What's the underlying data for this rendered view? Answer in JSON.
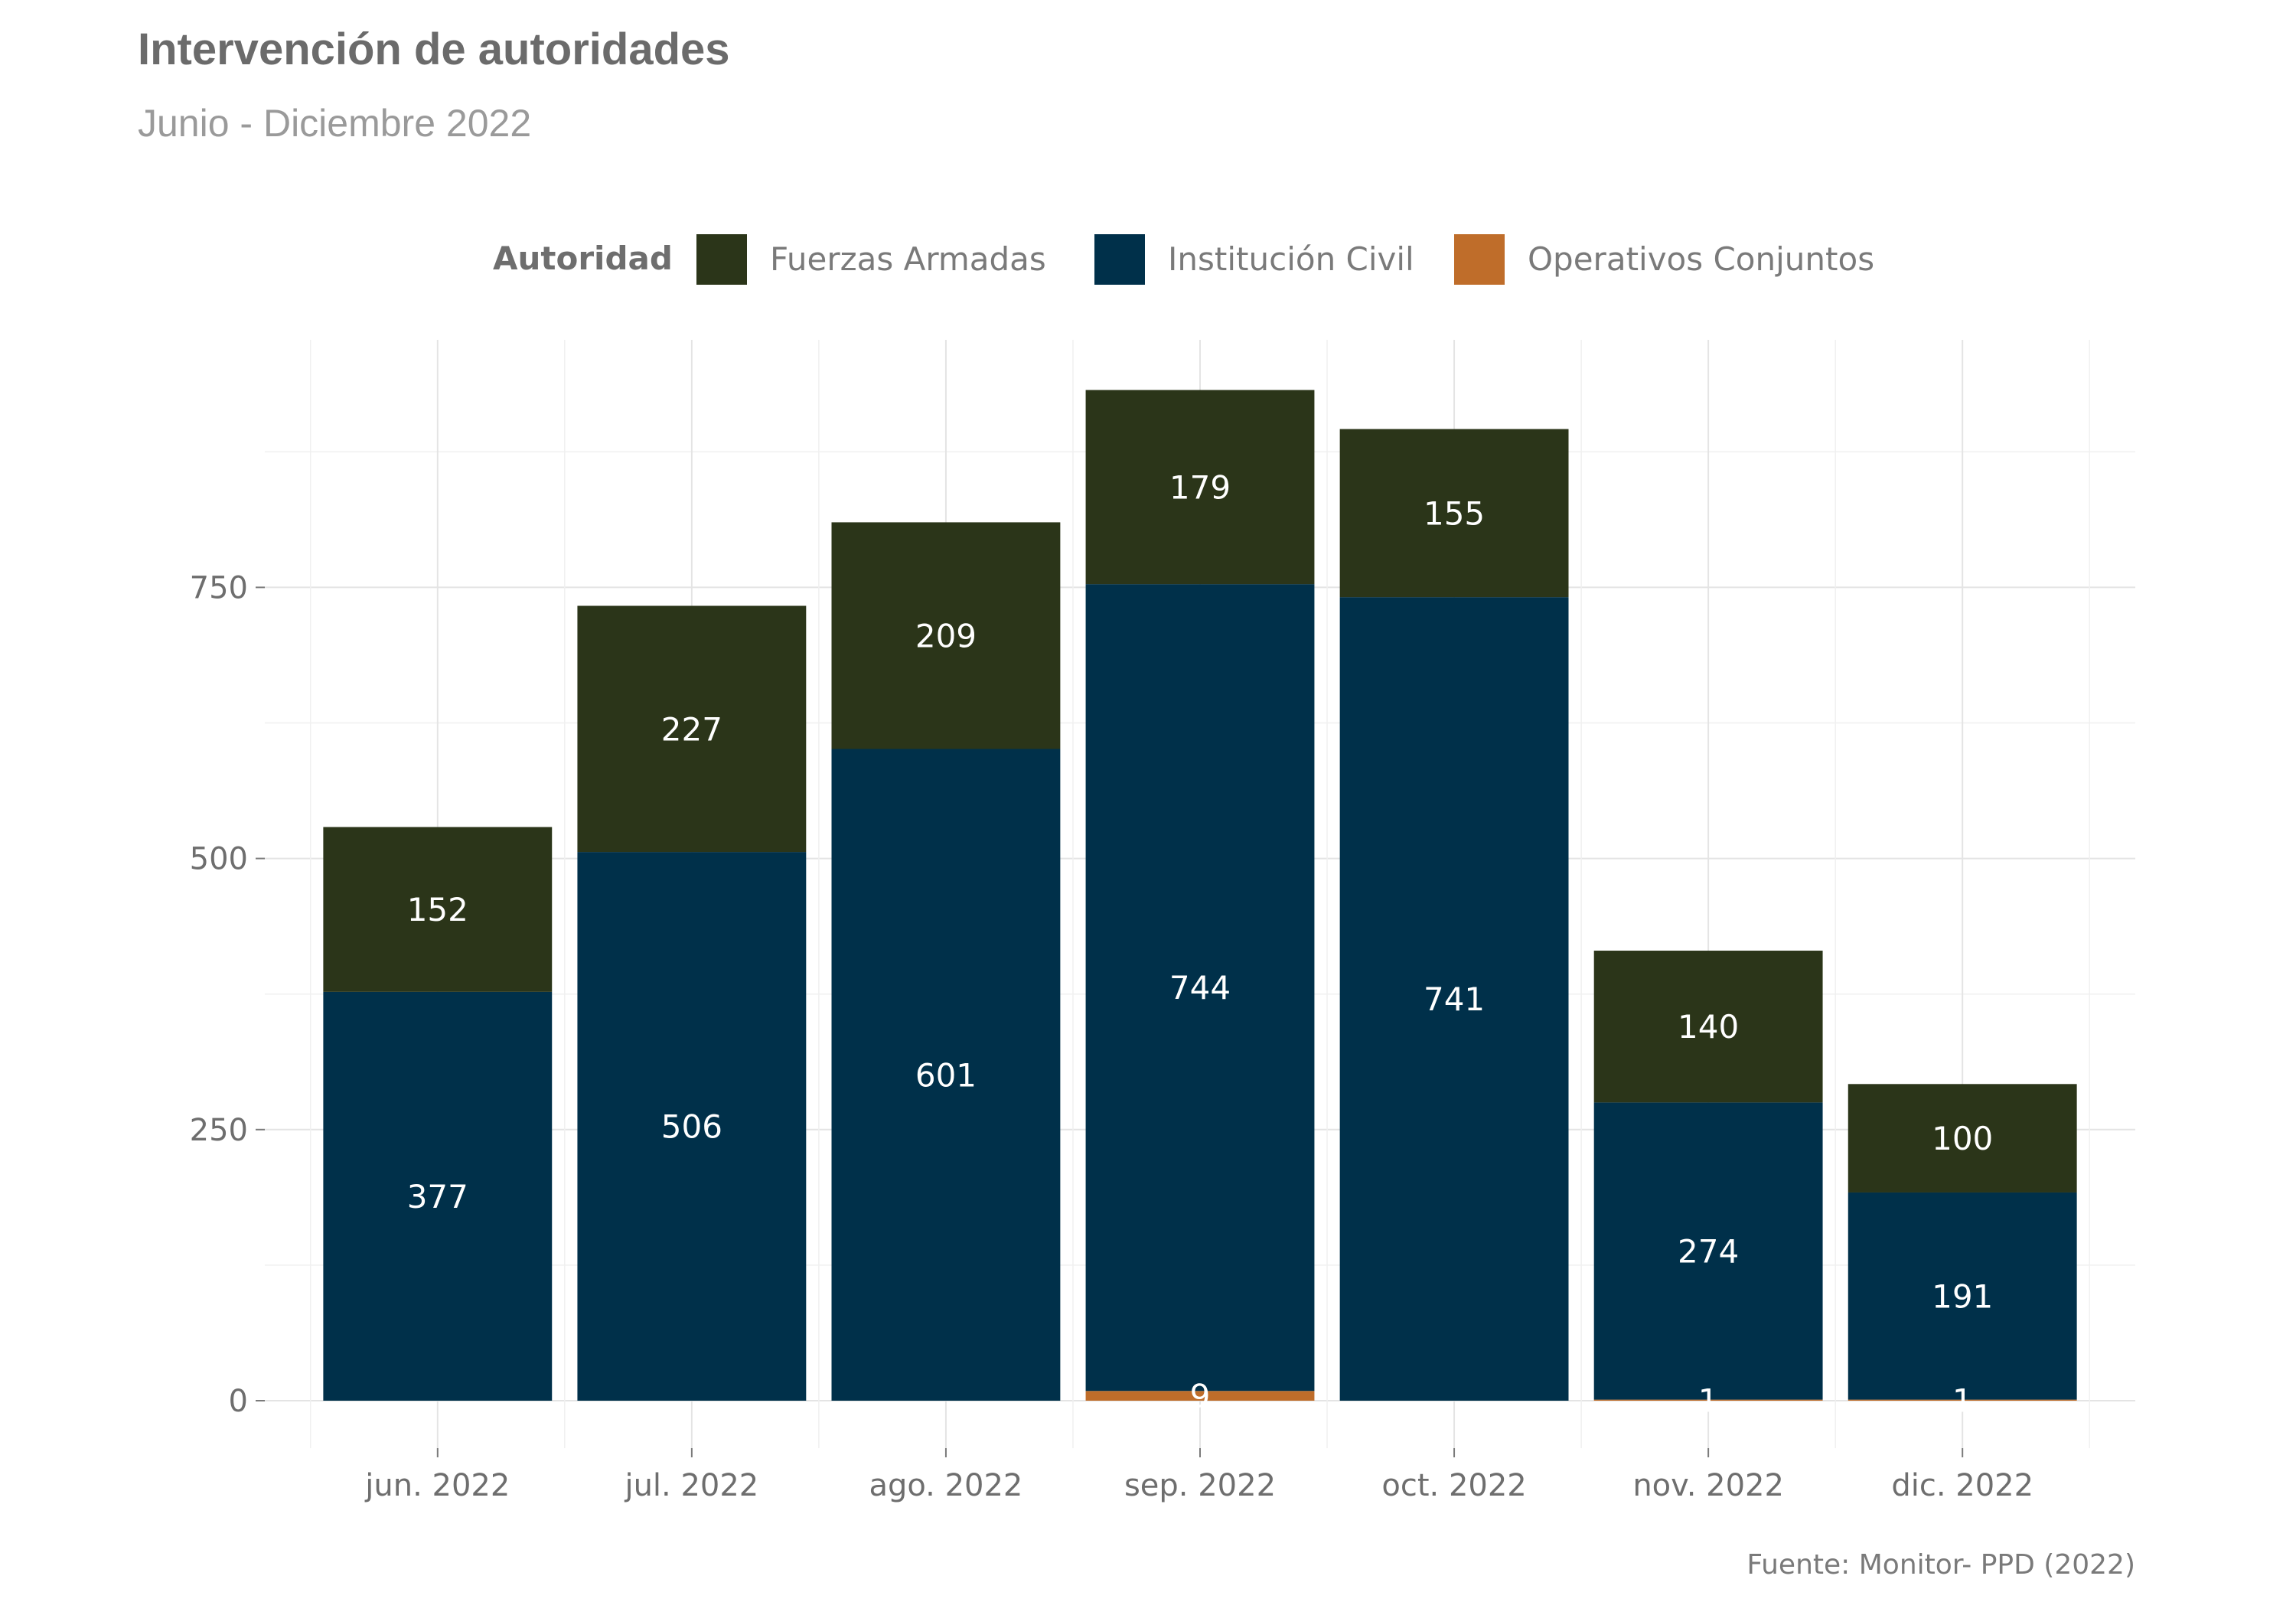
{
  "chart_data": {
    "type": "bar",
    "stacked": true,
    "title": "Intervención de autoridades",
    "subtitle": "Junio - Diciembre 2022",
    "caption": "Fuente: Monitor- PPD (2022)",
    "legend": {
      "title": "Autoridad",
      "position": "top",
      "entries": [
        "Fuerzas Armadas",
        "Institución Civil",
        "Operativos Conjuntos"
      ]
    },
    "categories": [
      "jun. 2022",
      "jul. 2022",
      "ago. 2022",
      "sep. 2022",
      "oct. 2022",
      "nov. 2022",
      "dic. 2022"
    ],
    "stack_order_bottom_to_top": [
      "Operativos Conjuntos",
      "Institución Civil",
      "Fuerzas Armadas"
    ],
    "series": [
      {
        "name": "Fuerzas Armadas",
        "color": "#2b3519",
        "values": [
          152,
          227,
          209,
          179,
          155,
          140,
          100
        ],
        "labels": [
          "152",
          "227",
          "209",
          "179",
          "155",
          "140",
          "100"
        ]
      },
      {
        "name": "Institución Civil",
        "color": "#00304a",
        "values": [
          377,
          506,
          601,
          744,
          741,
          274,
          191
        ],
        "labels": [
          "377",
          "506",
          "601",
          "744",
          "741",
          "274",
          "191"
        ]
      },
      {
        "name": "Operativos Conjuntos",
        "color": "#bf6d2a",
        "values": [
          null,
          null,
          null,
          9,
          null,
          1,
          1
        ],
        "labels": [
          null,
          null,
          null,
          "9",
          null,
          "1",
          "1"
        ]
      }
    ],
    "y_ticks": [
      0,
      250,
      500,
      750
    ],
    "y_tick_labels": [
      "0",
      "250",
      "500",
      "750"
    ],
    "ylim": [
      -45,
      980
    ],
    "grid": true
  }
}
